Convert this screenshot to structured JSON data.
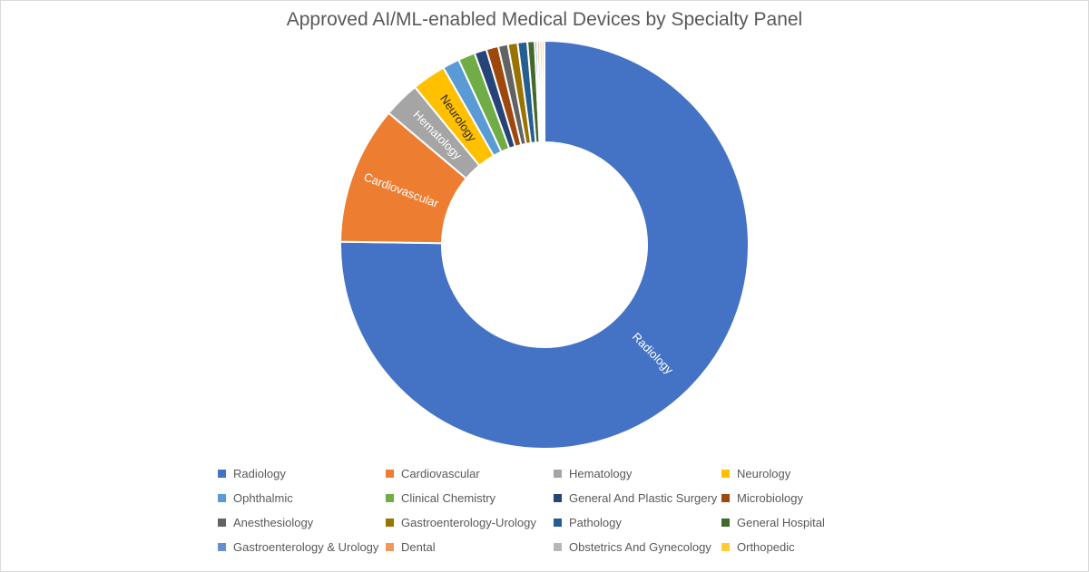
{
  "title": "Approved AI/ML-enabled Medical Devices by Specialty Panel",
  "chart_data": {
    "type": "pie",
    "subtype": "doughnut",
    "title": "Approved AI/ML-enabled Medical Devices by Specialty Panel",
    "categories": [
      "Radiology",
      "Cardiovascular",
      "Hematology",
      "Neurology",
      "Ophthalmic",
      "Clinical Chemistry",
      "General And Plastic Surgery",
      "Microbiology",
      "Anesthesiology",
      "Gastroenterology-Urology",
      "Pathology",
      "General Hospital",
      "Gastroenterology & Urology",
      "Dental",
      "Obstetrics And Gynecology",
      "Orthopedic"
    ],
    "values": [
      392,
      57,
      15,
      14,
      7,
      7,
      5,
      5,
      4,
      4,
      4,
      3,
      1,
      1,
      1,
      1
    ],
    "colors": [
      "#4472c4",
      "#ed7d31",
      "#a5a5a5",
      "#ffc000",
      "#5b9bd5",
      "#70ad47",
      "#264478",
      "#9e480e",
      "#636363",
      "#997300",
      "#255e91",
      "#43682b",
      "#698ed0",
      "#f1975a",
      "#b7b7b7",
      "#ffcd33"
    ],
    "data_labels": [
      "Radiology",
      "Cardiovascular",
      "Hematology",
      "Neurology"
    ],
    "legend_position": "bottom",
    "start_angle": 0,
    "direction": "clockwise"
  },
  "legend": [
    {
      "label": "Radiology",
      "color": "#4472c4"
    },
    {
      "label": "Cardiovascular",
      "color": "#ed7d31"
    },
    {
      "label": "Hematology",
      "color": "#a5a5a5"
    },
    {
      "label": "Neurology",
      "color": "#ffc000"
    },
    {
      "label": "Ophthalmic",
      "color": "#5b9bd5"
    },
    {
      "label": "Clinical Chemistry",
      "color": "#70ad47"
    },
    {
      "label": "General And Plastic Surgery",
      "color": "#264478"
    },
    {
      "label": "Microbiology",
      "color": "#9e480e"
    },
    {
      "label": "Anesthesiology",
      "color": "#636363"
    },
    {
      "label": "Gastroenterology-Urology",
      "color": "#997300"
    },
    {
      "label": "Pathology",
      "color": "#255e91"
    },
    {
      "label": "General Hospital",
      "color": "#43682b"
    },
    {
      "label": "Gastroenterology & Urology",
      "color": "#698ed0"
    },
    {
      "label": "Dental",
      "color": "#f1975a"
    },
    {
      "label": "Obstetrics And Gynecology",
      "color": "#b7b7b7"
    },
    {
      "label": "Orthopedic",
      "color": "#ffcd33"
    }
  ]
}
